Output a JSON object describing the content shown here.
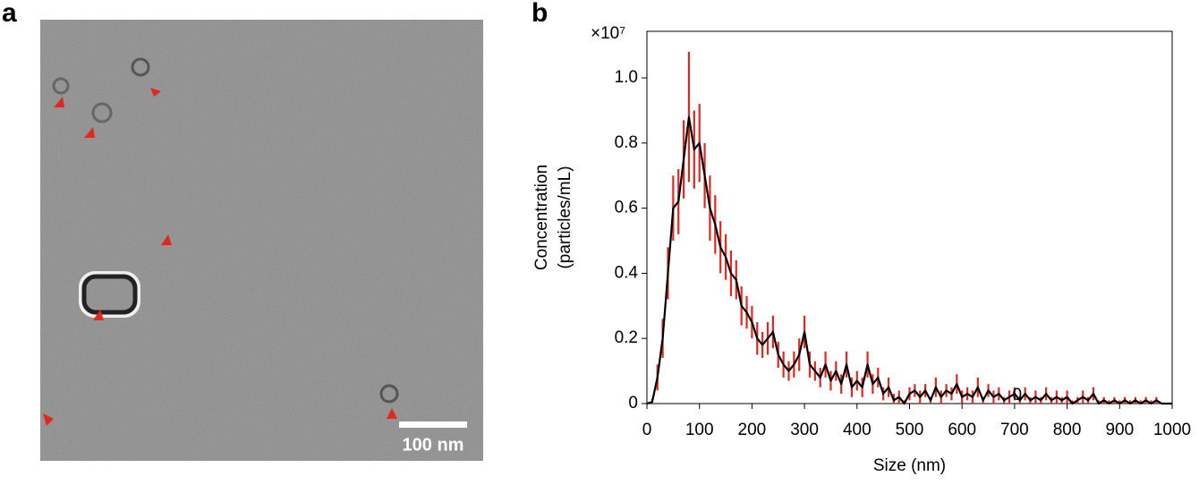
{
  "panel_a": {
    "label": "a",
    "scale_bar": "100 nm"
  },
  "chart_data": {
    "type": "line",
    "panel_label": "b",
    "x_label": "Size (nm)",
    "y_label": [
      "Concentration",
      "(particles/mL)"
    ],
    "y_multiplier": "×10⁷",
    "color": "#000000",
    "error_color": "#e0281e",
    "x": [
      0,
      10,
      20,
      30,
      40,
      50,
      60,
      70,
      80,
      90,
      100,
      110,
      120,
      130,
      140,
      150,
      160,
      170,
      180,
      190,
      200,
      210,
      220,
      230,
      240,
      250,
      260,
      270,
      280,
      290,
      300,
      310,
      320,
      330,
      340,
      350,
      360,
      370,
      380,
      390,
      400,
      410,
      420,
      430,
      440,
      450,
      460,
      470,
      480,
      490,
      500,
      510,
      520,
      530,
      540,
      550,
      560,
      570,
      580,
      590,
      600,
      610,
      620,
      630,
      640,
      650,
      660,
      670,
      680,
      690,
      700,
      710,
      720,
      730,
      740,
      750,
      760,
      770,
      780,
      790,
      800,
      810,
      820,
      830,
      840,
      850,
      860,
      870,
      880,
      890,
      900,
      910,
      920,
      930,
      940,
      950,
      960,
      970,
      980,
      990,
      1000
    ],
    "values": [
      0,
      0.005,
      0.08,
      0.2,
      0.4,
      0.6,
      0.62,
      0.75,
      0.88,
      0.78,
      0.8,
      0.7,
      0.6,
      0.55,
      0.48,
      0.45,
      0.4,
      0.38,
      0.3,
      0.28,
      0.25,
      0.2,
      0.18,
      0.2,
      0.22,
      0.15,
      0.12,
      0.1,
      0.12,
      0.15,
      0.22,
      0.12,
      0.1,
      0.08,
      0.12,
      0.07,
      0.1,
      0.06,
      0.12,
      0.05,
      0.07,
      0.05,
      0.12,
      0.06,
      0.08,
      0.03,
      0.05,
      0.01,
      0.02,
      0,
      0.03,
      0.04,
      0.02,
      0.04,
      0.01,
      0.05,
      0.02,
      0.04,
      0.03,
      0.06,
      0.02,
      0.03,
      0.02,
      0.05,
      0.01,
      0.04,
      0.02,
      0.03,
      0.01,
      0.02,
      0.03,
      0.01,
      0.03,
      0.01,
      0.02,
      0.01,
      0.03,
      0.01,
      0.02,
      0.01,
      0.02,
      0,
      0.01,
      0.02,
      0.01,
      0.03,
      0,
      0.01,
      0,
      0.01,
      0,
      0.01,
      0,
      0.01,
      0,
      0.01,
      0,
      0.01,
      0,
      0,
      0
    ],
    "errors": [
      0,
      0.01,
      0.04,
      0.06,
      0.08,
      0.1,
      0.1,
      0.12,
      0.2,
      0.12,
      0.12,
      0.1,
      0.1,
      0.09,
      0.08,
      0.07,
      0.07,
      0.06,
      0.06,
      0.05,
      0.05,
      0.05,
      0.04,
      0.05,
      0.05,
      0.04,
      0.04,
      0.03,
      0.04,
      0.05,
      0.05,
      0.04,
      0.03,
      0.03,
      0.04,
      0.03,
      0.03,
      0.03,
      0.04,
      0.03,
      0.03,
      0.03,
      0.04,
      0.03,
      0.03,
      0.02,
      0.03,
      0.02,
      0.02,
      0.01,
      0.02,
      0.02,
      0.02,
      0.02,
      0.01,
      0.03,
      0.02,
      0.02,
      0.02,
      0.03,
      0.02,
      0.02,
      0.02,
      0.03,
      0.01,
      0.02,
      0.02,
      0.02,
      0.01,
      0.02,
      0.02,
      0.01,
      0.02,
      0.01,
      0.02,
      0.01,
      0.02,
      0.01,
      0.02,
      0.01,
      0.02,
      0.01,
      0.01,
      0.02,
      0.01,
      0.02,
      0.01,
      0.01,
      0.01,
      0.01,
      0.01,
      0.01,
      0.01,
      0.01,
      0.01,
      0.01,
      0.01,
      0.01,
      0,
      0,
      0
    ],
    "annotations": [
      {
        "text": "0",
        "x": 705,
        "y": 0.025
      }
    ],
    "xlim": [
      0,
      1000
    ],
    "xticks": [
      0,
      100,
      200,
      300,
      400,
      500,
      600,
      700,
      800,
      900,
      1000
    ],
    "ylim": [
      0,
      1.143
    ],
    "yticks": [
      0,
      0.2,
      0.4,
      0.6,
      0.8,
      {
        "value": 1,
        "label": "1.0"
      }
    ]
  }
}
